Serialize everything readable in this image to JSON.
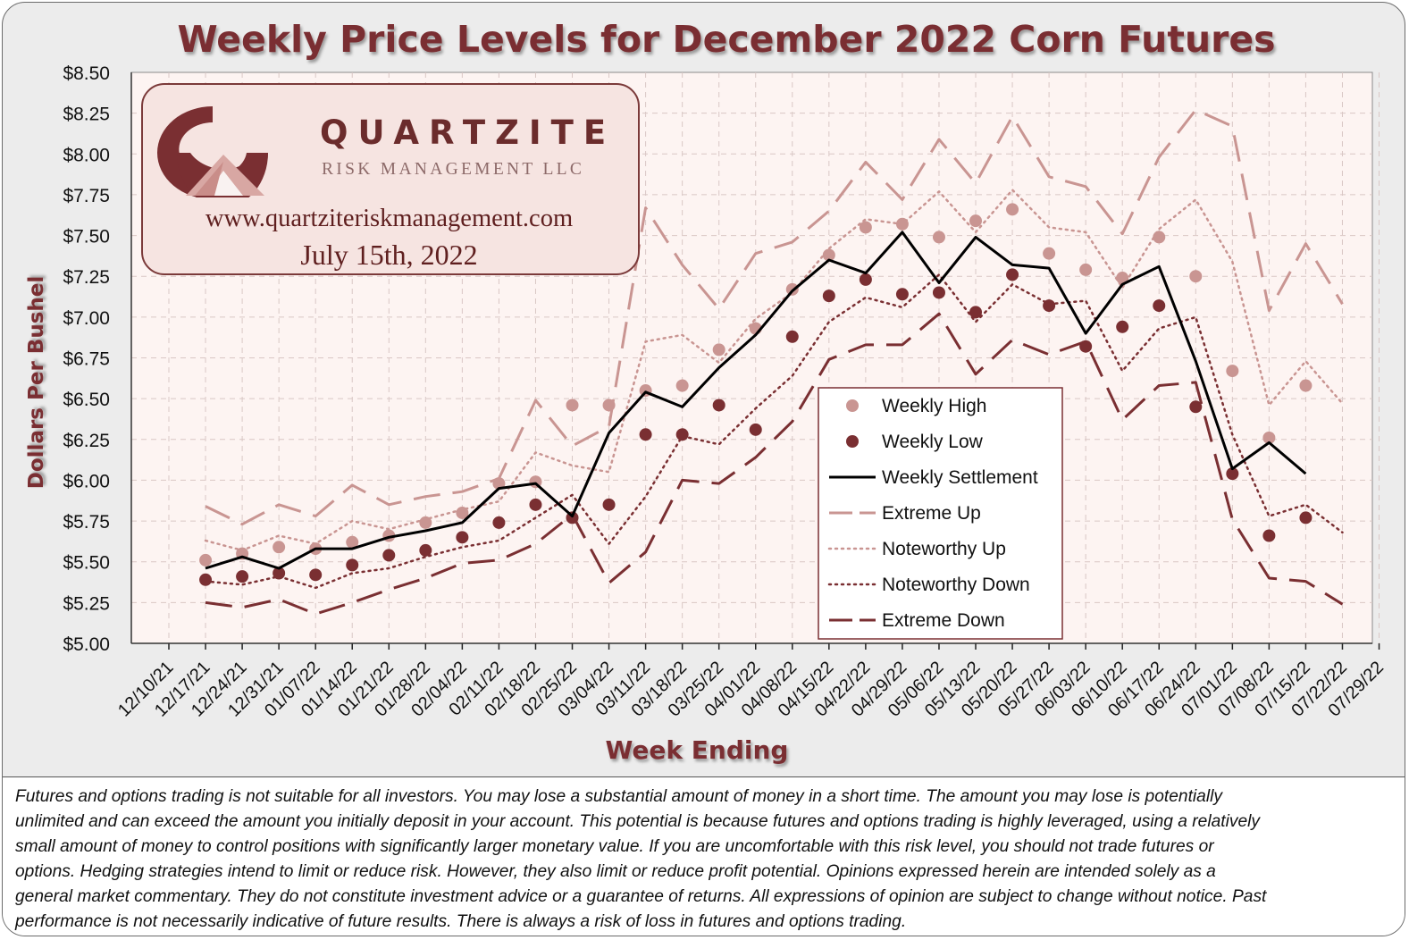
{
  "chart_data": {
    "type": "line",
    "title": "Weekly Price Levels for December 2022 Corn Futures",
    "xlabel": "Week Ending",
    "ylabel": "Dollars Per Bushel",
    "ylim": [
      5.0,
      8.5
    ],
    "y_ticks": [
      "$5.00",
      "$5.25",
      "$5.50",
      "$5.75",
      "$6.00",
      "$6.25",
      "$6.50",
      "$6.75",
      "$7.00",
      "$7.25",
      "$7.50",
      "$7.75",
      "$8.00",
      "$8.25",
      "$8.50"
    ],
    "grid": true,
    "legend_position": "center-right",
    "categories": [
      "12/10/21",
      "12/17/21",
      "12/24/21",
      "12/31/21",
      "01/07/22",
      "01/14/22",
      "01/21/22",
      "01/28/22",
      "02/04/22",
      "02/11/22",
      "02/18/22",
      "02/25/22",
      "03/04/22",
      "03/11/22",
      "03/18/22",
      "03/25/22",
      "04/01/22",
      "04/08/22",
      "04/15/22",
      "04/22/22",
      "04/29/22",
      "05/06/22",
      "05/13/22",
      "05/20/22",
      "05/27/22",
      "06/03/22",
      "06/10/22",
      "06/17/22",
      "06/24/22",
      "07/01/22",
      "07/08/22",
      "07/15/22",
      "07/22/22",
      "07/29/22"
    ],
    "series": [
      {
        "name": "Weekly High",
        "kind": "marker",
        "color": "#c99592",
        "values": [
          null,
          5.51,
          5.55,
          5.59,
          5.58,
          5.62,
          5.66,
          5.74,
          5.8,
          5.98,
          5.99,
          6.46,
          6.46,
          6.55,
          6.58,
          6.8,
          6.93,
          7.17,
          7.38,
          7.55,
          7.57,
          7.49,
          7.59,
          7.66,
          7.39,
          7.29,
          7.24,
          7.49,
          7.25,
          6.67,
          6.26,
          6.58,
          null,
          null
        ]
      },
      {
        "name": "Weekly Low",
        "kind": "marker",
        "color": "#7a2f32",
        "values": [
          null,
          5.39,
          5.41,
          5.43,
          5.42,
          5.48,
          5.54,
          5.57,
          5.65,
          5.74,
          5.85,
          5.77,
          5.85,
          6.28,
          6.28,
          6.46,
          6.31,
          6.88,
          7.13,
          7.23,
          7.14,
          7.15,
          7.03,
          7.26,
          7.07,
          6.82,
          6.94,
          7.07,
          6.45,
          6.04,
          5.66,
          5.77,
          null,
          null
        ]
      },
      {
        "name": "Weekly Settlement",
        "kind": "solid",
        "color": "#000000",
        "values": [
          null,
          5.46,
          5.53,
          5.46,
          5.58,
          5.58,
          5.65,
          5.69,
          5.74,
          5.95,
          5.98,
          5.78,
          6.29,
          6.54,
          6.45,
          6.69,
          6.89,
          7.16,
          7.35,
          7.27,
          7.52,
          7.21,
          7.49,
          7.32,
          7.3,
          6.9,
          7.2,
          7.31,
          6.73,
          6.07,
          6.23,
          6.04,
          null,
          null
        ]
      },
      {
        "name": "Extreme Up",
        "kind": "dash-long",
        "color": "#c99592",
        "values": [
          null,
          5.84,
          5.73,
          5.85,
          5.78,
          5.97,
          5.85,
          5.9,
          5.93,
          6.01,
          6.49,
          6.21,
          6.33,
          7.67,
          7.32,
          7.05,
          7.39,
          7.46,
          7.65,
          7.95,
          7.72,
          8.09,
          7.82,
          8.23,
          7.86,
          7.8,
          7.51,
          7.98,
          8.27,
          8.17,
          7.04,
          7.45,
          7.08,
          null
        ]
      },
      {
        "name": "Noteworthy Up",
        "kind": "dot",
        "color": "#c99592",
        "values": [
          null,
          5.63,
          5.57,
          5.66,
          5.61,
          5.75,
          5.7,
          5.76,
          5.82,
          5.87,
          6.17,
          6.09,
          6.05,
          6.85,
          6.89,
          6.72,
          6.99,
          7.15,
          7.42,
          7.6,
          7.57,
          7.77,
          7.52,
          7.78,
          7.55,
          7.52,
          7.18,
          7.54,
          7.72,
          7.34,
          6.46,
          6.73,
          6.47,
          null
        ]
      },
      {
        "name": "Noteworthy Down",
        "kind": "dot",
        "color": "#7a2f32",
        "values": [
          null,
          5.38,
          5.36,
          5.41,
          5.34,
          5.43,
          5.46,
          5.53,
          5.59,
          5.63,
          5.77,
          5.91,
          5.61,
          5.9,
          6.27,
          6.22,
          6.44,
          6.64,
          6.97,
          7.12,
          7.06,
          7.26,
          6.97,
          7.2,
          7.08,
          7.1,
          6.67,
          6.93,
          7.0,
          6.28,
          5.78,
          5.85,
          5.68,
          null
        ]
      },
      {
        "name": "Extreme Down",
        "kind": "dash-long",
        "color": "#7a2f32",
        "values": [
          null,
          5.25,
          5.22,
          5.27,
          5.18,
          5.25,
          5.33,
          5.4,
          5.49,
          5.51,
          5.61,
          5.79,
          5.37,
          5.56,
          6.0,
          5.98,
          6.14,
          6.36,
          6.74,
          6.83,
          6.83,
          7.02,
          6.65,
          6.86,
          6.77,
          6.85,
          6.37,
          6.58,
          6.6,
          5.76,
          5.4,
          5.38,
          5.24,
          null
        ]
      }
    ]
  },
  "branding": {
    "company_name": "QUARTZITE",
    "company_sub": "RISK MANAGEMENT LLC",
    "website": "www.quartziteriskmanagement.com",
    "date": "July 15th, 2022"
  },
  "disclaimer_lines": [
    "Futures and options trading is not suitable for all investors. You may lose a substantial amount of money in a short time. The amount you may lose is potentially",
    "unlimited and can exceed the amount you initially deposit in your account. This potential is because futures and options trading is highly leveraged, using a relatively",
    "small amount of money to control positions with significantly larger monetary value. If you are uncomfortable with this risk level, you should not trade futures or",
    "options. Hedging strategies intend to limit or reduce risk. However, they also limit or reduce profit potential. Opinions expressed herein are intended solely as a",
    "general market commentary. They do not constitute investment advice or a guarantee of returns. All expressions of opinion are subject to change without notice. Past",
    "performance is not necessarily indicative of future results. There is always a risk of loss in futures and options trading."
  ],
  "colors": {
    "title": "#7a2f32",
    "plot_bg": "#fdf4f2",
    "grid": "#d9c7c5",
    "high": "#c99592",
    "low": "#7a2f32"
  }
}
